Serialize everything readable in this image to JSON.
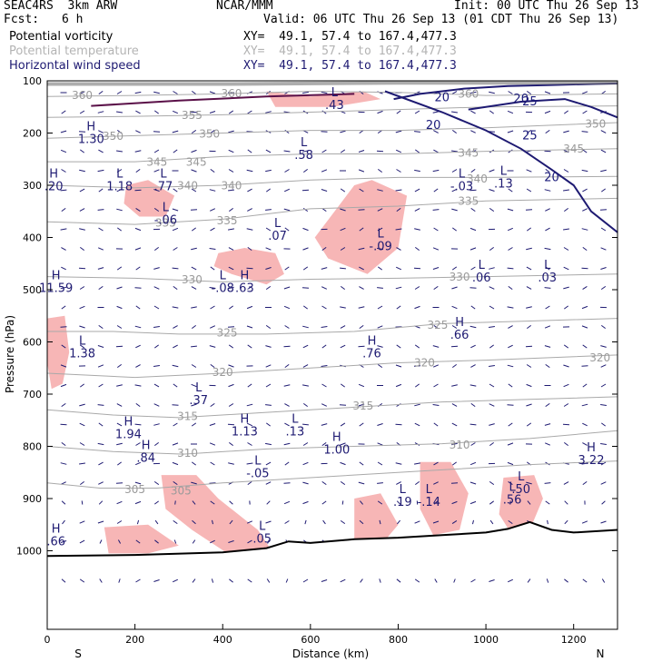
{
  "header": {
    "experiment": "SEAC4RS  3km ARW",
    "org": "NCAR/MMM",
    "init": "Init: 00 UTC Thu 26 Sep 13",
    "fcst_label": "Fcst:",
    "fcst_value": "6 h",
    "valid": "Valid: 06 UTC Thu 26 Sep 13 (01 CDT Thu 26 Sep 13)",
    "fields": [
      {
        "name": "Potential vorticity",
        "xy": "XY=  49.1, 57.4 to 167.4,477.3",
        "color": "#000000"
      },
      {
        "name": "Potential temperature",
        "xy": "XY=  49.1, 57.4 to 167.4,477.3",
        "color": "#b4b4b4"
      },
      {
        "name": "Horizontal wind speed",
        "xy": "XY=  49.1, 57.4 to 167.4,477.3",
        "color": "#1e1a72"
      }
    ]
  },
  "chart_data": {
    "type": "cross-section",
    "xlabel": "Distance (km)",
    "ylabel": "Pressure (hPa)",
    "xlim": [
      0,
      1300
    ],
    "ylim": [
      1050,
      100
    ],
    "x_ticks": [
      0,
      200,
      400,
      600,
      800,
      1000,
      1200
    ],
    "y_ticks": [
      100,
      200,
      300,
      400,
      500,
      600,
      700,
      800,
      900,
      1000
    ],
    "end_labels": {
      "left": "S",
      "right": "N"
    },
    "colors": {
      "pv_shade": "#f7b6b6",
      "theta": "#a9a9a9",
      "wind": "#1e1a72",
      "pv_contour": "#5a1048",
      "terrain": "#000000"
    },
    "theta_contours": [
      {
        "value": 305,
        "points": [
          [
            0,
            870
          ],
          [
            120,
            880
          ],
          [
            250,
            880
          ],
          [
            400,
            870
          ],
          [
            600,
            860
          ],
          [
            900,
            845
          ],
          [
            1100,
            835
          ],
          [
            1300,
            828
          ]
        ],
        "labels": [
          [
            200,
            883
          ],
          [
            305,
            885
          ]
        ]
      },
      {
        "value": 310,
        "points": [
          [
            0,
            800
          ],
          [
            150,
            810
          ],
          [
            310,
            815
          ],
          [
            500,
            805
          ],
          [
            700,
            800
          ],
          [
            900,
            795
          ],
          [
            1100,
            785
          ],
          [
            1300,
            770
          ]
        ],
        "labels": [
          [
            320,
            813
          ],
          [
            940,
            797
          ]
        ]
      },
      {
        "value": 315,
        "points": [
          [
            0,
            730
          ],
          [
            150,
            740
          ],
          [
            300,
            745
          ],
          [
            500,
            735
          ],
          [
            700,
            725
          ],
          [
            900,
            715
          ],
          [
            1100,
            710
          ],
          [
            1300,
            705
          ]
        ],
        "labels": [
          [
            320,
            743
          ],
          [
            720,
            723
          ]
        ]
      },
      {
        "value": 320,
        "points": [
          [
            0,
            660
          ],
          [
            200,
            668
          ],
          [
            400,
            660
          ],
          [
            600,
            650
          ],
          [
            800,
            640
          ],
          [
            1000,
            635
          ],
          [
            1300,
            625
          ]
        ],
        "labels": [
          [
            400,
            658
          ],
          [
            860,
            640
          ],
          [
            1260,
            630
          ]
        ]
      },
      {
        "value": 325,
        "points": [
          [
            0,
            580
          ],
          [
            150,
            580
          ],
          [
            300,
            585
          ],
          [
            500,
            585
          ],
          [
            700,
            580
          ],
          [
            900,
            565
          ],
          [
            1100,
            560
          ],
          [
            1300,
            555
          ]
        ],
        "labels": [
          [
            410,
            583
          ],
          [
            890,
            568
          ]
        ]
      },
      {
        "value": 330,
        "points": [
          [
            0,
            475
          ],
          [
            200,
            478
          ],
          [
            400,
            485
          ],
          [
            600,
            480
          ],
          [
            800,
            478
          ],
          [
            1000,
            475
          ],
          [
            1300,
            470
          ]
        ],
        "labels": [
          [
            330,
            481
          ],
          [
            940,
            476
          ]
        ]
      },
      {
        "value": 335,
        "points": [
          [
            0,
            370
          ],
          [
            200,
            375
          ],
          [
            400,
            365
          ],
          [
            600,
            345
          ],
          [
            800,
            340
          ],
          [
            1000,
            330
          ],
          [
            1300,
            325
          ]
        ],
        "labels": [
          [
            270,
            372
          ],
          [
            410,
            368
          ],
          [
            960,
            330
          ]
        ]
      },
      {
        "value": 340,
        "points": [
          [
            0,
            300
          ],
          [
            200,
            305
          ],
          [
            400,
            300
          ],
          [
            600,
            290
          ],
          [
            800,
            285
          ],
          [
            1000,
            285
          ],
          [
            1300,
            283
          ]
        ],
        "labels": [
          [
            320,
            301
          ],
          [
            420,
            301
          ],
          [
            980,
            288
          ]
        ]
      },
      {
        "value": 345,
        "points": [
          [
            0,
            255
          ],
          [
            200,
            255
          ],
          [
            400,
            245
          ],
          [
            600,
            240
          ],
          [
            800,
            240
          ],
          [
            1000,
            235
          ],
          [
            1300,
            230
          ]
        ],
        "labels": [
          [
            250,
            256
          ],
          [
            340,
            256
          ],
          [
            960,
            238
          ],
          [
            1200,
            230
          ]
        ]
      },
      {
        "value": 350,
        "points": [
          [
            0,
            210
          ],
          [
            200,
            205
          ],
          [
            400,
            200
          ],
          [
            600,
            195
          ],
          [
            800,
            195
          ],
          [
            1000,
            190
          ],
          [
            1300,
            180
          ]
        ],
        "labels": [
          [
            150,
            206
          ],
          [
            370,
            202
          ],
          [
            1250,
            183
          ]
        ]
      },
      {
        "value": 355,
        "points": [
          [
            0,
            170
          ],
          [
            200,
            168
          ],
          [
            400,
            165
          ],
          [
            600,
            160
          ],
          [
            800,
            155
          ],
          [
            1000,
            150
          ],
          [
            1300,
            148
          ]
        ],
        "labels": [
          [
            330,
            166
          ]
        ]
      },
      {
        "value": 360,
        "points": [
          [
            0,
            130
          ],
          [
            200,
            128
          ],
          [
            400,
            125
          ],
          [
            600,
            120
          ],
          [
            800,
            122
          ],
          [
            1000,
            128
          ],
          [
            1300,
            125
          ]
        ],
        "labels": [
          [
            80,
            128
          ],
          [
            420,
            124
          ],
          [
            960,
            125
          ]
        ]
      }
    ],
    "wind_contours": [
      {
        "value": 20,
        "points": [
          [
            790,
            135
          ],
          [
            850,
            125
          ],
          [
            950,
            115
          ],
          [
            1050,
            110
          ],
          [
            1150,
            108
          ],
          [
            1300,
            105
          ]
        ],
        "labels": [
          [
            900,
            132
          ],
          [
            1080,
            135
          ]
        ]
      },
      {
        "value": 20,
        "points": [
          [
            770,
            120
          ],
          [
            900,
            160
          ],
          [
            1000,
            195
          ],
          [
            1080,
            230
          ],
          [
            1150,
            270
          ],
          [
            1200,
            300
          ],
          [
            1240,
            350
          ],
          [
            1300,
            390
          ]
        ],
        "labels": [
          [
            880,
            185
          ],
          [
            1150,
            285
          ]
        ]
      },
      {
        "value": 25,
        "points": [
          [
            960,
            155
          ],
          [
            1080,
            140
          ],
          [
            1180,
            135
          ],
          [
            1240,
            150
          ],
          [
            1300,
            170
          ]
        ],
        "labels": [
          [
            1100,
            140
          ],
          [
            1100,
            205
          ]
        ]
      }
    ],
    "pv_regions": [
      {
        "points": [
          [
            180,
            300
          ],
          [
            230,
            290
          ],
          [
            290,
            320
          ],
          [
            270,
            360
          ],
          [
            210,
            360
          ],
          [
            175,
            335
          ]
        ]
      },
      {
        "points": [
          [
            390,
            430
          ],
          [
            450,
            420
          ],
          [
            520,
            430
          ],
          [
            540,
            470
          ],
          [
            500,
            490
          ],
          [
            420,
            470
          ],
          [
            380,
            455
          ]
        ]
      },
      {
        "points": [
          [
            610,
            400
          ],
          [
            700,
            300
          ],
          [
            740,
            290
          ],
          [
            820,
            320
          ],
          [
            800,
            420
          ],
          [
            730,
            470
          ],
          [
            640,
            440
          ]
        ]
      },
      {
        "points": [
          [
            500,
            120
          ],
          [
            600,
            130
          ],
          [
            720,
            120
          ],
          [
            760,
            135
          ],
          [
            650,
            150
          ],
          [
            520,
            150
          ]
        ]
      },
      {
        "points": [
          [
            0,
            555
          ],
          [
            40,
            550
          ],
          [
            50,
            620
          ],
          [
            35,
            680
          ],
          [
            10,
            690
          ],
          [
            0,
            640
          ]
        ]
      },
      {
        "points": [
          [
            260,
            855
          ],
          [
            340,
            855
          ],
          [
            390,
            900
          ],
          [
            480,
            960
          ],
          [
            520,
            1010
          ],
          [
            420,
            1010
          ],
          [
            330,
            960
          ],
          [
            270,
            920
          ]
        ]
      },
      {
        "points": [
          [
            130,
            955
          ],
          [
            230,
            950
          ],
          [
            300,
            990
          ],
          [
            230,
            1005
          ],
          [
            140,
            1005
          ]
        ]
      },
      {
        "points": [
          [
            850,
            830
          ],
          [
            920,
            830
          ],
          [
            960,
            890
          ],
          [
            940,
            960
          ],
          [
            880,
            970
          ],
          [
            850,
            920
          ]
        ]
      },
      {
        "points": [
          [
            1040,
            860
          ],
          [
            1110,
            855
          ],
          [
            1130,
            900
          ],
          [
            1100,
            960
          ],
          [
            1060,
            970
          ],
          [
            1030,
            930
          ]
        ]
      },
      {
        "points": [
          [
            700,
            900
          ],
          [
            760,
            890
          ],
          [
            800,
            950
          ],
          [
            760,
            990
          ],
          [
            700,
            980
          ]
        ]
      }
    ],
    "extrema": [
      {
        "type": "H",
        "value": "1.30",
        "x": 100,
        "p": 200
      },
      {
        "type": "H",
        "value": ".20",
        "x": 15,
        "p": 290
      },
      {
        "type": "L",
        "value": "1.18",
        "x": 165,
        "p": 290
      },
      {
        "type": "L",
        "value": ".77",
        "x": 265,
        "p": 290
      },
      {
        "type": "L",
        "value": "-.06",
        "x": 270,
        "p": 355
      },
      {
        "type": "L",
        "value": ".07",
        "x": 525,
        "p": 385
      },
      {
        "type": "L",
        "value": ".58",
        "x": 585,
        "p": 230
      },
      {
        "type": "L",
        "value": ".43",
        "x": 655,
        "p": 135
      },
      {
        "type": "L",
        "value": "-.09",
        "x": 760,
        "p": 405
      },
      {
        "type": "L",
        "value": "-.03",
        "x": 945,
        "p": 290
      },
      {
        "type": "L",
        "value": ".13",
        "x": 1040,
        "p": 285
      },
      {
        "type": "L",
        "value": ".06",
        "x": 990,
        "p": 465
      },
      {
        "type": "L",
        "value": ".03",
        "x": 1140,
        "p": 465
      },
      {
        "type": "H",
        "value": "11.59",
        "x": 20,
        "p": 485
      },
      {
        "type": "L",
        "value": "-.08",
        "x": 400,
        "p": 485
      },
      {
        "type": "H",
        "value": ".63",
        "x": 450,
        "p": 485
      },
      {
        "type": "H",
        "value": ".66",
        "x": 940,
        "p": 575
      },
      {
        "type": "H",
        "value": ".76",
        "x": 740,
        "p": 610
      },
      {
        "type": "L",
        "value": "1.38",
        "x": 80,
        "p": 610
      },
      {
        "type": "L",
        "value": ".37",
        "x": 345,
        "p": 700
      },
      {
        "type": "H",
        "value": "1.13",
        "x": 450,
        "p": 760
      },
      {
        "type": "L",
        "value": ".13",
        "x": 565,
        "p": 760
      },
      {
        "type": "H",
        "value": "1.94",
        "x": 185,
        "p": 765
      },
      {
        "type": "H",
        "value": "1.00",
        "x": 660,
        "p": 795
      },
      {
        "type": "H",
        "value": ".84",
        "x": 225,
        "p": 810
      },
      {
        "type": "L",
        "value": "-.05",
        "x": 480,
        "p": 840
      },
      {
        "type": "L",
        "value": ".19",
        "x": 810,
        "p": 895
      },
      {
        "type": "L",
        "value": "-.14",
        "x": 870,
        "p": 895
      },
      {
        "type": "L",
        "value": ".50",
        "x": 1080,
        "p": 870
      },
      {
        "type": "L",
        "value": ".56",
        "x": 1060,
        "p": 890
      },
      {
        "type": "H",
        "value": "3.22",
        "x": 1240,
        "p": 815
      },
      {
        "type": "H",
        "value": ".66",
        "x": 20,
        "p": 970
      },
      {
        "type": "L",
        "value": ".05",
        "x": 490,
        "p": 965
      }
    ],
    "theta_plot": {
      "color": "#a9a9a9"
    }
  }
}
